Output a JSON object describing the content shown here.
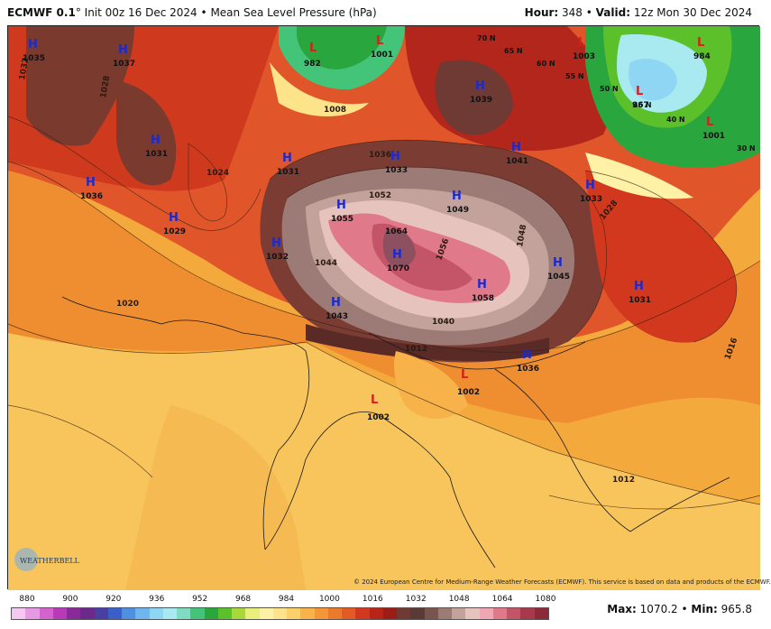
{
  "header": {
    "model": "ECMWF 0.1",
    "degree": "°",
    "init": "Init 00z 16 Dec 2024",
    "sep": "•",
    "field": "Mean Sea Level Pressure (hPa)",
    "hour_label": "Hour:",
    "hour": "348",
    "valid_label": "Valid:",
    "valid": "12z Mon 30 Dec 2024"
  },
  "highs": [
    {
      "v": "1035"
    },
    {
      "v": "1037"
    },
    {
      "v": "1031"
    },
    {
      "v": "1036"
    },
    {
      "v": "1031"
    },
    {
      "v": "1033"
    },
    {
      "v": "1029"
    },
    {
      "v": "1055"
    },
    {
      "v": "1049"
    },
    {
      "v": "1039"
    },
    {
      "v": "1041"
    },
    {
      "v": "1033"
    },
    {
      "v": "1032"
    },
    {
      "v": "1064"
    },
    {
      "v": "1070"
    },
    {
      "v": "1058"
    },
    {
      "v": "1045"
    },
    {
      "v": "1043"
    },
    {
      "v": "1031"
    },
    {
      "v": "1036"
    }
  ],
  "lows": [
    {
      "v": "982"
    },
    {
      "v": "1001"
    },
    {
      "v": "1003"
    },
    {
      "v": "984"
    },
    {
      "v": "967"
    },
    {
      "v": "1001"
    },
    {
      "v": "1002"
    },
    {
      "v": "1002"
    }
  ],
  "isobars": [
    "1032",
    "1028",
    "1024",
    "1020",
    "1016",
    "1008",
    "1012",
    "1044",
    "1052",
    "1040",
    "1036",
    "1048",
    "1056"
  ],
  "lat_labels": [
    "70 N",
    "65 N",
    "60 N",
    "55 N",
    "50 N",
    "45 N",
    "40 N",
    "30 N"
  ],
  "marker_h": "H",
  "marker_l": "L",
  "copyright": "© 2024 European Centre for Medium-Range Weather Forecasts (ECMWF). This service is based on data and products of the ECMWF.",
  "logo_text": "WEATHERBELL",
  "colorbar": {
    "ticks": [
      "880",
      "900",
      "920",
      "936",
      "952",
      "968",
      "984",
      "1000",
      "1016",
      "1032",
      "1048",
      "1064",
      "1080"
    ],
    "colors": [
      "#f4c8f0",
      "#e79ae2",
      "#d463cf",
      "#b83ab8",
      "#8a2a9a",
      "#6a2a8a",
      "#4a3fa0",
      "#3b5fc8",
      "#4f8fe0",
      "#6fb6ef",
      "#8fd6f5",
      "#a9eaf0",
      "#7fdcc0",
      "#44c479",
      "#2aa63e",
      "#5bc02a",
      "#a8d83a",
      "#e8ef7a",
      "#fff2a6",
      "#fde38a",
      "#fbd06a",
      "#f7b34a",
      "#f29637",
      "#ec7a2c",
      "#e25a24",
      "#d2381d",
      "#b82418",
      "#9a1e16",
      "#6e3a33",
      "#5a3a36",
      "#7a5550",
      "#9c7a75",
      "#c3a29c",
      "#e7c3be",
      "#f0a7b3",
      "#e07a8a",
      "#c45467",
      "#a8394d",
      "#8c2a3b"
    ],
    "max_label": "Max:",
    "max": "1070.2",
    "min_label": "Min:",
    "min": "965.8",
    "sep": "•"
  }
}
